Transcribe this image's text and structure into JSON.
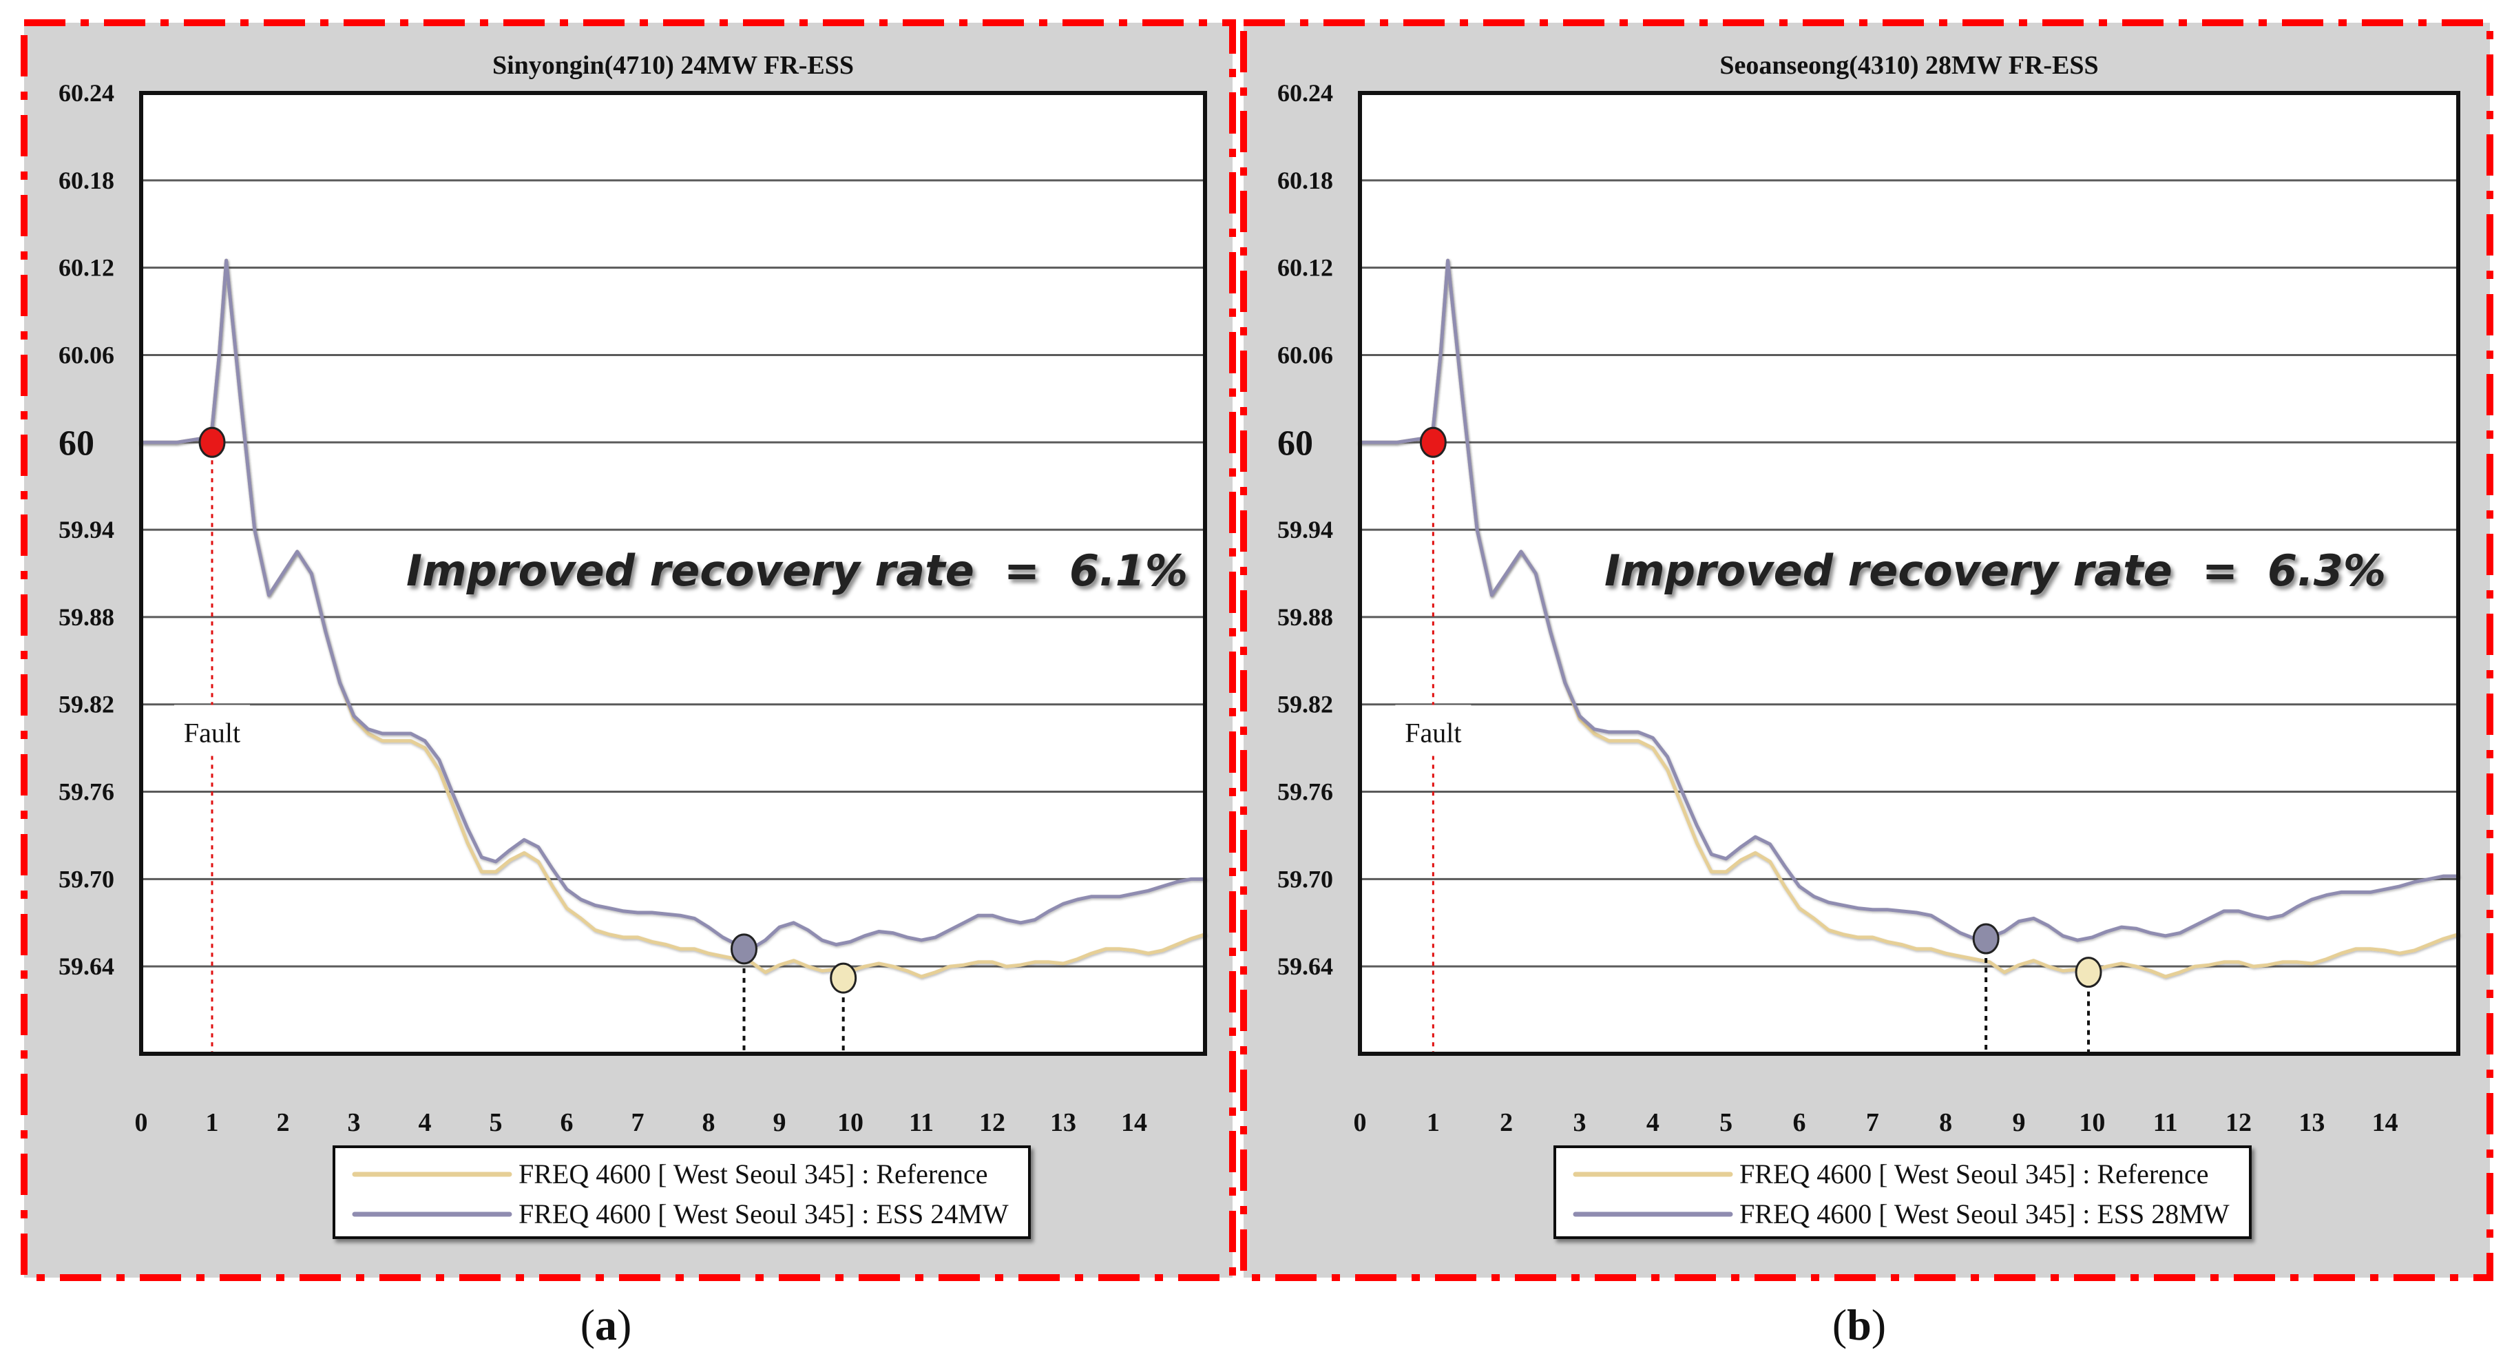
{
  "colors": {
    "reference": "#e6cf96",
    "ess": "#8f8cb0",
    "fault_marker": "#e81818",
    "fault_line": "#e01010",
    "panel_bg": "#d3d3d3",
    "frame": "#ff0000",
    "grid": "#5a5a5a",
    "ess_marker": "#8d8ca8",
    "reference_marker": "#f2e7bb"
  },
  "chart_data": [
    {
      "type": "line",
      "panel_label": "a",
      "title": "Sinyongin(4710) 24MW FR-ESS",
      "annotation": "Improved recovery rate  =  6.1%",
      "fault_label": "Fault",
      "xlabel": "",
      "ylabel": "",
      "xlim": [
        0,
        15
      ],
      "ylim": [
        59.58,
        60.24
      ],
      "x_ticks": [
        "0",
        "1",
        "2",
        "3",
        "4",
        "5",
        "6",
        "7",
        "8",
        "9",
        "10",
        "11",
        "12",
        "13",
        "14"
      ],
      "y_ticks": [
        "60.24",
        "60.18",
        "60.12",
        "60.06",
        "60",
        "59.94",
        "59.88",
        "59.82",
        "59.76",
        "59.70",
        "59.64"
      ],
      "legend": [
        "FREQ 4600 [ West Seoul 345] : Reference",
        "FREQ 4600 [ West Seoul 345] : ESS 24MW"
      ],
      "fault_point": {
        "x": 1.0,
        "y": 60.0
      },
      "ess_min_point": {
        "x": 8.5,
        "y": 59.652
      },
      "ref_min_point": {
        "x": 9.9,
        "y": 59.632
      },
      "series": [
        {
          "name": "Reference",
          "x": [
            0,
            0.5,
            0.9,
            1.0,
            1.1,
            1.2,
            1.4,
            1.6,
            1.8,
            2.0,
            2.2,
            2.4,
            2.6,
            2.8,
            3.0,
            3.2,
            3.4,
            3.6,
            3.8,
            4.0,
            4.2,
            4.4,
            4.6,
            4.8,
            5.0,
            5.2,
            5.4,
            5.6,
            5.8,
            6.0,
            6.2,
            6.4,
            6.6,
            6.8,
            7.0,
            7.2,
            7.4,
            7.6,
            7.8,
            8.0,
            8.2,
            8.4,
            8.6,
            8.8,
            9.0,
            9.2,
            9.4,
            9.6,
            9.8,
            10.0,
            10.2,
            10.4,
            10.6,
            10.8,
            11.0,
            11.2,
            11.4,
            11.6,
            11.8,
            12.0,
            12.2,
            12.4,
            12.6,
            12.8,
            13.0,
            13.2,
            13.4,
            13.6,
            13.8,
            14.0,
            14.2,
            14.4,
            14.6,
            14.8,
            15.0
          ],
          "values": [
            60.0,
            60.0,
            60.003,
            60.01,
            60.06,
            60.125,
            60.03,
            59.94,
            59.895,
            59.91,
            59.925,
            59.91,
            59.87,
            59.835,
            59.81,
            59.8,
            59.795,
            59.795,
            59.795,
            59.79,
            59.775,
            59.75,
            59.725,
            59.705,
            59.705,
            59.713,
            59.718,
            59.712,
            59.695,
            59.68,
            59.673,
            59.665,
            59.662,
            59.66,
            59.66,
            59.657,
            59.655,
            59.652,
            59.652,
            59.649,
            59.647,
            59.645,
            59.643,
            59.636,
            59.641,
            59.644,
            59.64,
            59.637,
            59.638,
            59.637,
            59.64,
            59.642,
            59.64,
            59.637,
            59.633,
            59.636,
            59.64,
            59.641,
            59.643,
            59.643,
            59.64,
            59.641,
            59.643,
            59.643,
            59.642,
            59.645,
            59.649,
            59.652,
            59.652,
            59.651,
            59.649,
            59.651,
            59.655,
            59.659,
            59.662
          ]
        },
        {
          "name": "ESS 24MW",
          "x": [
            0,
            0.5,
            0.9,
            1.0,
            1.1,
            1.2,
            1.4,
            1.6,
            1.8,
            2.0,
            2.2,
            2.4,
            2.6,
            2.8,
            3.0,
            3.2,
            3.4,
            3.6,
            3.8,
            4.0,
            4.2,
            4.4,
            4.6,
            4.8,
            5.0,
            5.2,
            5.4,
            5.6,
            5.8,
            6.0,
            6.2,
            6.4,
            6.6,
            6.8,
            7.0,
            7.2,
            7.4,
            7.6,
            7.8,
            8.0,
            8.2,
            8.4,
            8.6,
            8.8,
            9.0,
            9.2,
            9.4,
            9.6,
            9.8,
            10.0,
            10.2,
            10.4,
            10.6,
            10.8,
            11.0,
            11.2,
            11.4,
            11.6,
            11.8,
            12.0,
            12.2,
            12.4,
            12.6,
            12.8,
            13.0,
            13.2,
            13.4,
            13.6,
            13.8,
            14.0,
            14.2,
            14.4,
            14.6,
            14.8,
            15.0
          ],
          "values": [
            60.0,
            60.0,
            60.003,
            60.01,
            60.06,
            60.125,
            60.03,
            59.94,
            59.895,
            59.91,
            59.925,
            59.91,
            59.87,
            59.835,
            59.812,
            59.803,
            59.8,
            59.8,
            59.8,
            59.795,
            59.782,
            59.758,
            59.735,
            59.715,
            59.712,
            59.72,
            59.727,
            59.722,
            59.707,
            59.693,
            59.686,
            59.682,
            59.68,
            59.678,
            59.677,
            59.677,
            59.676,
            59.675,
            59.673,
            59.667,
            59.66,
            59.655,
            59.652,
            59.658,
            59.667,
            59.67,
            59.665,
            59.658,
            59.655,
            59.657,
            59.661,
            59.664,
            59.663,
            59.66,
            59.658,
            59.66,
            59.665,
            59.67,
            59.675,
            59.675,
            59.672,
            59.67,
            59.672,
            59.678,
            59.683,
            59.686,
            59.688,
            59.688,
            59.688,
            59.69,
            59.692,
            59.695,
            59.698,
            59.7,
            59.7
          ]
        }
      ]
    },
    {
      "type": "line",
      "panel_label": "b",
      "title": "Seoanseong(4310) 28MW FR-ESS",
      "annotation": "Improved recovery rate  =  6.3%",
      "fault_label": "Fault",
      "xlabel": "",
      "ylabel": "",
      "xlim": [
        0,
        15
      ],
      "ylim": [
        59.58,
        60.24
      ],
      "x_ticks": [
        "0",
        "1",
        "2",
        "3",
        "4",
        "5",
        "6",
        "7",
        "8",
        "9",
        "10",
        "11",
        "12",
        "13",
        "14"
      ],
      "y_ticks": [
        "60.24",
        "60.18",
        "60.12",
        "60.06",
        "60",
        "59.94",
        "59.88",
        "59.82",
        "59.76",
        "59.70",
        "59.64"
      ],
      "legend": [
        "FREQ 4600 [ West Seoul 345] : Reference",
        "FREQ 4600 [ West Seoul 345] : ESS 28MW"
      ],
      "fault_point": {
        "x": 1.0,
        "y": 60.0
      },
      "ess_min_point": {
        "x": 8.55,
        "y": 59.659
      },
      "ref_min_point": {
        "x": 9.95,
        "y": 59.636
      },
      "series": [
        {
          "name": "Reference",
          "x": [
            0,
            0.5,
            0.9,
            1.0,
            1.1,
            1.2,
            1.4,
            1.6,
            1.8,
            2.0,
            2.2,
            2.4,
            2.6,
            2.8,
            3.0,
            3.2,
            3.4,
            3.6,
            3.8,
            4.0,
            4.2,
            4.4,
            4.6,
            4.8,
            5.0,
            5.2,
            5.4,
            5.6,
            5.8,
            6.0,
            6.2,
            6.4,
            6.6,
            6.8,
            7.0,
            7.2,
            7.4,
            7.6,
            7.8,
            8.0,
            8.2,
            8.4,
            8.6,
            8.8,
            9.0,
            9.2,
            9.4,
            9.6,
            9.8,
            10.0,
            10.2,
            10.4,
            10.6,
            10.8,
            11.0,
            11.2,
            11.4,
            11.6,
            11.8,
            12.0,
            12.2,
            12.4,
            12.6,
            12.8,
            13.0,
            13.2,
            13.4,
            13.6,
            13.8,
            14.0,
            14.2,
            14.4,
            14.6,
            14.8,
            15.0
          ],
          "values": [
            60.0,
            60.0,
            60.003,
            60.01,
            60.06,
            60.125,
            60.03,
            59.94,
            59.895,
            59.91,
            59.925,
            59.91,
            59.87,
            59.835,
            59.81,
            59.8,
            59.795,
            59.795,
            59.795,
            59.79,
            59.775,
            59.75,
            59.725,
            59.705,
            59.705,
            59.713,
            59.718,
            59.712,
            59.695,
            59.68,
            59.673,
            59.665,
            59.662,
            59.66,
            59.66,
            59.657,
            59.655,
            59.652,
            59.652,
            59.649,
            59.647,
            59.645,
            59.643,
            59.636,
            59.641,
            59.644,
            59.64,
            59.637,
            59.638,
            59.637,
            59.64,
            59.642,
            59.64,
            59.637,
            59.633,
            59.636,
            59.64,
            59.641,
            59.643,
            59.643,
            59.64,
            59.641,
            59.643,
            59.643,
            59.642,
            59.645,
            59.649,
            59.652,
            59.652,
            59.651,
            59.649,
            59.651,
            59.655,
            59.659,
            59.662
          ]
        },
        {
          "name": "ESS 28MW",
          "x": [
            0,
            0.5,
            0.9,
            1.0,
            1.1,
            1.2,
            1.4,
            1.6,
            1.8,
            2.0,
            2.2,
            2.4,
            2.6,
            2.8,
            3.0,
            3.2,
            3.4,
            3.6,
            3.8,
            4.0,
            4.2,
            4.4,
            4.6,
            4.8,
            5.0,
            5.2,
            5.4,
            5.6,
            5.8,
            6.0,
            6.2,
            6.4,
            6.6,
            6.8,
            7.0,
            7.2,
            7.4,
            7.6,
            7.8,
            8.0,
            8.2,
            8.4,
            8.6,
            8.8,
            9.0,
            9.2,
            9.4,
            9.6,
            9.8,
            10.0,
            10.2,
            10.4,
            10.6,
            10.8,
            11.0,
            11.2,
            11.4,
            11.6,
            11.8,
            12.0,
            12.2,
            12.4,
            12.6,
            12.8,
            13.0,
            13.2,
            13.4,
            13.6,
            13.8,
            14.0,
            14.2,
            14.4,
            14.6,
            14.8,
            15.0
          ],
          "values": [
            60.0,
            60.0,
            60.003,
            60.01,
            60.06,
            60.125,
            60.03,
            59.94,
            59.895,
            59.91,
            59.925,
            59.91,
            59.87,
            59.835,
            59.812,
            59.803,
            59.801,
            59.801,
            59.801,
            59.797,
            59.784,
            59.76,
            59.737,
            59.717,
            59.714,
            59.722,
            59.729,
            59.724,
            59.709,
            59.695,
            59.688,
            59.684,
            59.682,
            59.68,
            59.679,
            59.679,
            59.678,
            59.677,
            59.675,
            59.669,
            59.663,
            59.659,
            59.66,
            59.664,
            59.671,
            59.673,
            59.668,
            59.661,
            59.658,
            59.66,
            59.664,
            59.667,
            59.666,
            59.663,
            59.661,
            59.663,
            59.668,
            59.673,
            59.678,
            59.678,
            59.675,
            59.673,
            59.675,
            59.681,
            59.686,
            59.689,
            59.691,
            59.691,
            59.691,
            59.693,
            59.695,
            59.698,
            59.7,
            59.702,
            59.702
          ]
        }
      ]
    }
  ]
}
